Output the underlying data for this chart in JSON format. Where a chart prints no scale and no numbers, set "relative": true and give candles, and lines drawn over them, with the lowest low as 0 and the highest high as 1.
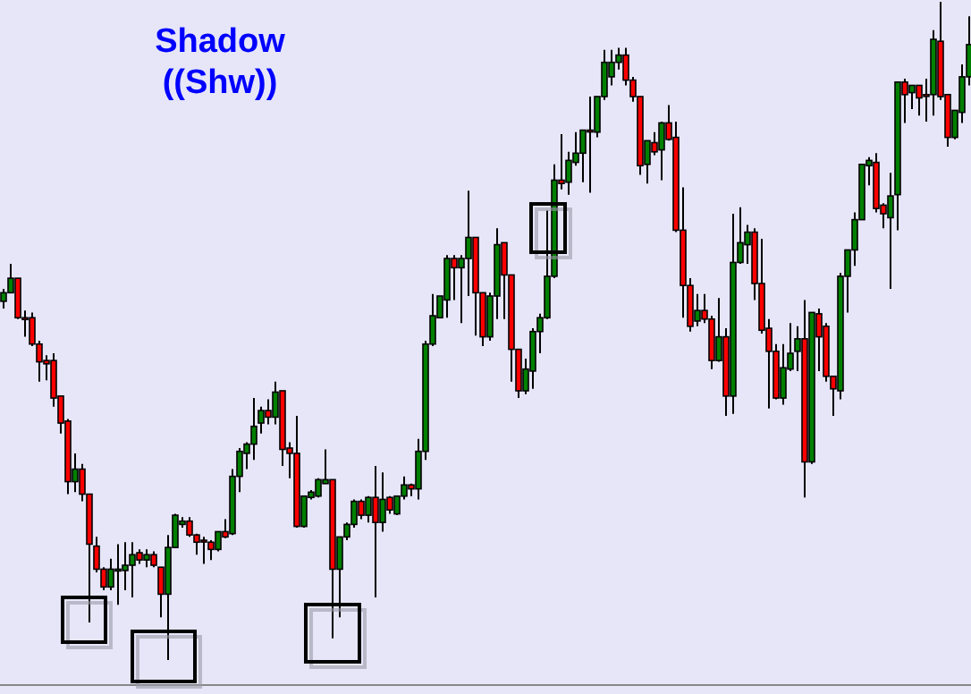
{
  "chart_data": {
    "type": "candlestick",
    "title": "Shadow",
    "subtitle": "((Shw))",
    "relative": true,
    "categories": [
      null,
      null,
      null,
      null,
      null,
      null,
      null,
      null,
      null,
      null,
      null,
      null,
      null,
      null,
      null,
      null,
      null,
      null,
      null,
      null,
      null,
      null,
      null,
      null,
      null,
      null,
      null,
      null,
      null,
      null,
      null,
      null,
      null,
      null,
      null,
      null,
      null,
      null,
      null,
      null,
      null,
      null,
      null,
      null,
      null,
      null,
      null,
      null,
      null,
      null,
      null,
      null,
      null,
      null,
      null,
      null,
      null,
      null,
      null,
      null,
      null,
      null,
      null,
      null,
      null,
      null,
      null,
      null,
      null,
      null,
      null,
      null,
      null,
      null,
      null,
      null,
      null,
      null,
      null,
      null,
      null,
      null,
      null,
      null,
      null,
      null,
      null,
      null,
      null,
      null,
      null,
      null,
      null,
      null,
      null,
      null,
      null,
      null,
      null,
      null,
      null,
      null,
      null,
      null,
      null,
      null,
      null,
      null,
      null,
      null,
      null,
      null,
      null,
      null,
      null,
      null,
      null,
      null,
      null,
      null,
      null,
      null,
      null,
      null,
      null,
      null,
      null,
      null,
      null,
      null,
      null,
      null,
      null,
      null,
      null,
      null
    ],
    "ohlc": [
      [
        0.545,
        0.564,
        0.534,
        0.558
      ],
      [
        0.558,
        0.602,
        0.558,
        0.58
      ],
      [
        0.58,
        0.58,
        0.518,
        0.52
      ],
      [
        0.52,
        0.531,
        0.491,
        0.518
      ],
      [
        0.52,
        0.528,
        0.477,
        0.48
      ],
      [
        0.48,
        0.485,
        0.423,
        0.453
      ],
      [
        0.455,
        0.463,
        0.425,
        0.45
      ],
      [
        0.455,
        0.466,
        0.385,
        0.398
      ],
      [
        0.401,
        0.401,
        0.344,
        0.36
      ],
      [
        0.363,
        0.366,
        0.252,
        0.271
      ],
      [
        0.271,
        0.314,
        0.255,
        0.29
      ],
      [
        0.29,
        0.298,
        0.241,
        0.252
      ],
      [
        0.252,
        0.252,
        0.057,
        0.176
      ],
      [
        0.173,
        0.187,
        0.133,
        0.138
      ],
      [
        0.138,
        0.141,
        0.106,
        0.111
      ],
      [
        0.111,
        0.154,
        0.106,
        0.138
      ],
      [
        0.136,
        0.176,
        0.084,
        0.138
      ],
      [
        0.136,
        0.179,
        0.106,
        0.144
      ],
      [
        0.144,
        0.179,
        0.095,
        0.16
      ],
      [
        0.163,
        0.168,
        0.146,
        0.152
      ],
      [
        0.152,
        0.168,
        0.141,
        0.16
      ],
      [
        0.16,
        0.165,
        0.141,
        0.144
      ],
      [
        0.141,
        0.141,
        0.065,
        0.1
      ],
      [
        0.1,
        0.19,
        0,
        0.171
      ],
      [
        0.171,
        0.222,
        0.171,
        0.22
      ],
      [
        0.206,
        0.217,
        0.201,
        0.211
      ],
      [
        0.211,
        0.217,
        0.187,
        0.19
      ],
      [
        0.19,
        0.192,
        0.16,
        0.179
      ],
      [
        0.182,
        0.187,
        0.146,
        0.18
      ],
      [
        0.179,
        0.182,
        0.152,
        0.168
      ],
      [
        0.168,
        0.195,
        0.165,
        0.195
      ],
      [
        0.195,
        0.214,
        0.185,
        0.187
      ],
      [
        0.192,
        0.29,
        0.19,
        0.279
      ],
      [
        0.279,
        0.322,
        0.255,
        0.317
      ],
      [
        0.314,
        0.331,
        0.29,
        0.328
      ],
      [
        0.328,
        0.398,
        0.304,
        0.355
      ],
      [
        0.36,
        0.385,
        0.344,
        0.379
      ],
      [
        0.379,
        0.396,
        0.358,
        0.369
      ],
      [
        0.369,
        0.423,
        0.358,
        0.407
      ],
      [
        0.409,
        0.409,
        0.295,
        0.32
      ],
      [
        0.322,
        0.331,
        0.276,
        0.314
      ],
      [
        0.314,
        0.371,
        0.201,
        0.203
      ],
      [
        0.203,
        0.249,
        0.201,
        0.249
      ],
      [
        0.247,
        0.258,
        0.244,
        0.255
      ],
      [
        0.249,
        0.276,
        0.247,
        0.274
      ],
      [
        0.268,
        0.32,
        0.268,
        0.274
      ],
      [
        0.274,
        0.274,
        0.033,
        0.138
      ],
      [
        0.138,
        0.187,
        0.065,
        0.187
      ],
      [
        0.187,
        0.209,
        0.182,
        0.206
      ],
      [
        0.206,
        0.244,
        0.201,
        0.241
      ],
      [
        0.241,
        0.244,
        0.214,
        0.22
      ],
      [
        0.22,
        0.249,
        0.209,
        0.247
      ],
      [
        0.247,
        0.295,
        0.095,
        0.209
      ],
      [
        0.209,
        0.285,
        0.195,
        0.244
      ],
      [
        0.247,
        0.249,
        0.222,
        0.228
      ],
      [
        0.222,
        0.249,
        0.22,
        0.249
      ],
      [
        0.249,
        0.279,
        0.244,
        0.266
      ],
      [
        0.266,
        0.268,
        0.249,
        0.26
      ],
      [
        0.26,
        0.336,
        0.244,
        0.317
      ],
      [
        0.317,
        0.485,
        0.304,
        0.48
      ],
      [
        0.48,
        0.556,
        0.477,
        0.523
      ],
      [
        0.52,
        0.553,
        0.52,
        0.553
      ],
      [
        0.547,
        0.615,
        0.52,
        0.61
      ],
      [
        0.61,
        0.615,
        0.547,
        0.596
      ],
      [
        0.596,
        0.615,
        0.512,
        0.61
      ],
      [
        0.61,
        0.713,
        0.553,
        0.642
      ],
      [
        0.642,
        0.642,
        0.493,
        0.558
      ],
      [
        0.558,
        0.558,
        0.477,
        0.491
      ],
      [
        0.491,
        0.558,
        0.485,
        0.553
      ],
      [
        0.553,
        0.656,
        0.518,
        0.631
      ],
      [
        0.634,
        0.634,
        0.518,
        0.585
      ],
      [
        0.585,
        0.585,
        0.423,
        0.472
      ],
      [
        0.472,
        0.472,
        0.398,
        0.409
      ],
      [
        0.409,
        0.458,
        0.404,
        0.442
      ],
      [
        0.439,
        0.504,
        0.412,
        0.499
      ],
      [
        0.499,
        0.526,
        0.466,
        0.52
      ],
      [
        0.52,
        0.683,
        0.518,
        0.583
      ],
      [
        0.583,
        0.753,
        0.58,
        0.729
      ],
      [
        0.729,
        0.799,
        0.715,
        0.724
      ],
      [
        0.726,
        0.772,
        0.707,
        0.759
      ],
      [
        0.756,
        0.802,
        0.751,
        0.77
      ],
      [
        0.77,
        0.805,
        0.726,
        0.805
      ],
      [
        0.805,
        0.856,
        0.71,
        0.803
      ],
      [
        0.802,
        0.856,
        0.794,
        0.856
      ],
      [
        0.856,
        0.927,
        0.851,
        0.908
      ],
      [
        0.886,
        0.927,
        0.873,
        0.908
      ],
      [
        0.908,
        0.93,
        0.897,
        0.919
      ],
      [
        0.919,
        0.93,
        0.873,
        0.881
      ],
      [
        0.881,
        0.886,
        0.848,
        0.856
      ],
      [
        0.856,
        0.856,
        0.737,
        0.751
      ],
      [
        0.753,
        0.789,
        0.724,
        0.789
      ],
      [
        0.786,
        0.802,
        0.767,
        0.772
      ],
      [
        0.775,
        0.818,
        0.729,
        0.816
      ],
      [
        0.816,
        0.843,
        0.789,
        0.791
      ],
      [
        0.794,
        0.818,
        0.65,
        0.653
      ],
      [
        0.653,
        0.718,
        0.52,
        0.569
      ],
      [
        0.569,
        0.58,
        0.499,
        0.507
      ],
      [
        0.515,
        0.556,
        0.507,
        0.531
      ],
      [
        0.531,
        0.556,
        0.512,
        0.518
      ],
      [
        0.518,
        0.523,
        0.442,
        0.455
      ],
      [
        0.455,
        0.55,
        0.453,
        0.491
      ],
      [
        0.491,
        0.504,
        0.371,
        0.401
      ],
      [
        0.401,
        0.678,
        0.374,
        0.604
      ],
      [
        0.604,
        0.688,
        0.602,
        0.634
      ],
      [
        0.631,
        0.661,
        0.602,
        0.65
      ],
      [
        0.65,
        0.656,
        0.547,
        0.572
      ],
      [
        0.572,
        0.64,
        0.496,
        0.501
      ],
      [
        0.504,
        0.518,
        0.382,
        0.469
      ],
      [
        0.469,
        0.48,
        0.396,
        0.398
      ],
      [
        0.398,
        0.48,
        0.388,
        0.444
      ],
      [
        0.442,
        0.512,
        0.439,
        0.466
      ],
      [
        0.469,
        0.507,
        0.439,
        0.488
      ],
      [
        0.488,
        0.547,
        0.247,
        0.301
      ],
      [
        0.301,
        0.528,
        0.298,
        0.528
      ],
      [
        0.526,
        0.534,
        0.439,
        0.491
      ],
      [
        0.507,
        0.512,
        0.423,
        0.431
      ],
      [
        0.431,
        0.431,
        0.371,
        0.412
      ],
      [
        0.409,
        0.588,
        0.396,
        0.583
      ],
      [
        0.583,
        0.623,
        0.528,
        0.623
      ],
      [
        0.623,
        0.68,
        0.599,
        0.669
      ],
      [
        0.669,
        0.753,
        0.669,
        0.753
      ],
      [
        0.751,
        0.764,
        0.721,
        0.759
      ],
      [
        0.756,
        0.77,
        0.68,
        0.686
      ],
      [
        0.691,
        0.694,
        0.656,
        0.678
      ],
      [
        0.672,
        0.74,
        0.564,
        0.705
      ],
      [
        0.707,
        0.878,
        0.653,
        0.878
      ],
      [
        0.878,
        0.883,
        0.816,
        0.859
      ],
      [
        0.862,
        0.873,
        0.837,
        0.873
      ],
      [
        0.873,
        0.873,
        0.827,
        0.854
      ],
      [
        0.859,
        0.883,
        0.818,
        0.857
      ],
      [
        0.859,
        0.957,
        0.827,
        0.943
      ],
      [
        0.94,
        1,
        0.851,
        0.856
      ],
      [
        0.859,
        0.859,
        0.78,
        0.794
      ],
      [
        0.794,
        0.835,
        0.791,
        0.835
      ],
      [
        0.832,
        0.905,
        0.816,
        0.886
      ],
      [
        0.886,
        0.978,
        0.873,
        0.935
      ]
    ]
  }
}
